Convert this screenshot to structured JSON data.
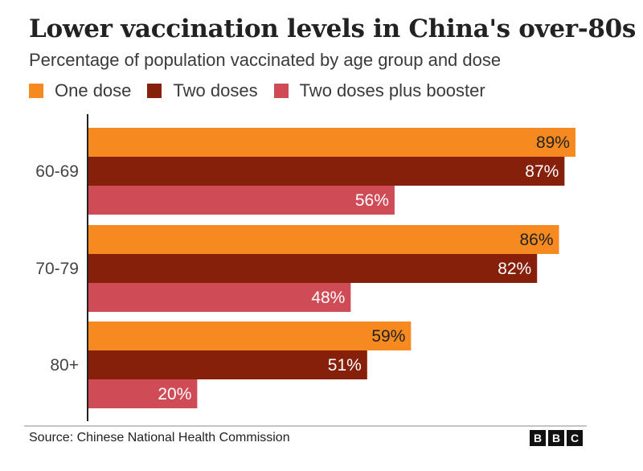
{
  "title": "Lower vaccination levels in China's over-80s",
  "subtitle": "Percentage of population vaccinated by age group and dose",
  "legend": [
    {
      "label": "One dose",
      "color": "#f68a20"
    },
    {
      "label": "Two doses",
      "color": "#86200a"
    },
    {
      "label": "Two doses plus booster",
      "color": "#cf4c56"
    }
  ],
  "chart_data": {
    "type": "bar",
    "orientation": "horizontal",
    "title": "Lower vaccination levels in China's over-80s",
    "subtitle": "Percentage of population vaccinated by age group and dose",
    "categories": [
      "60-69",
      "70-79",
      "80+"
    ],
    "series": [
      {
        "name": "One dose",
        "values": [
          89,
          86,
          59
        ],
        "labels": [
          "89%",
          "86%",
          "59%"
        ]
      },
      {
        "name": "Two doses",
        "values": [
          87,
          82,
          51
        ],
        "labels": [
          "87%",
          "82%",
          "51%"
        ]
      },
      {
        "name": "Two doses plus booster",
        "values": [
          56,
          48,
          20
        ],
        "labels": [
          "56%",
          "48%",
          "20%"
        ]
      }
    ],
    "xlim": [
      0,
      100
    ],
    "unit": "%",
    "grid": false,
    "legend_position": "top-left"
  },
  "source": "Source: Chinese National Health Commission",
  "logo": [
    "B",
    "B",
    "C"
  ]
}
